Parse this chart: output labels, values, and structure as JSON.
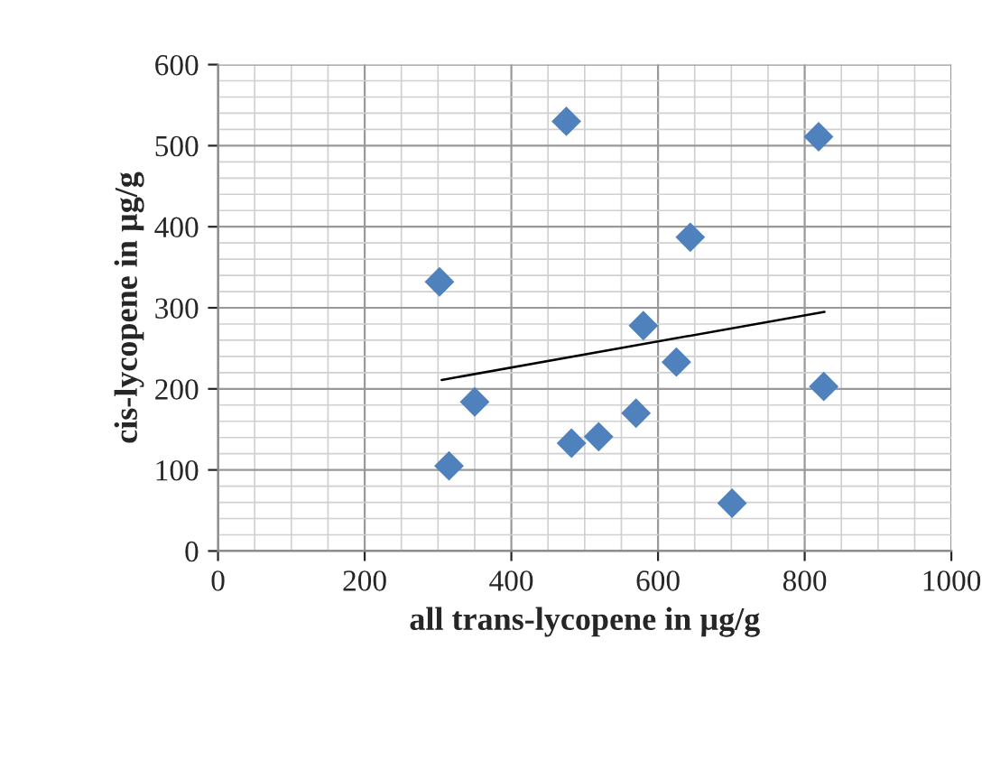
{
  "chart_data": {
    "type": "scatter",
    "xlabel": "all trans-lycopene in µg/g",
    "ylabel": "cis-lycopene in µg/g",
    "xlim": [
      0,
      1000
    ],
    "xticks": [
      0,
      200,
      400,
      600,
      800,
      1000
    ],
    "ylim": [
      0,
      600
    ],
    "yticks": [
      0,
      100,
      200,
      300,
      400,
      500,
      600
    ],
    "grid": true,
    "series": [
      {
        "marker": "diamond",
        "color": "#4f81bd",
        "x": [
          302,
          315,
          350,
          475,
          482,
          519,
          570,
          580,
          625,
          644,
          701,
          819,
          826
        ],
        "values": [
          332,
          105,
          184,
          530,
          133,
          141,
          170,
          278,
          233,
          387,
          59,
          511,
          203
        ]
      },
      {
        "type": "line",
        "marker": "none",
        "color": "#000000",
        "x": [
          305,
          827
        ],
        "values": [
          211,
          295
        ]
      }
    ]
  }
}
